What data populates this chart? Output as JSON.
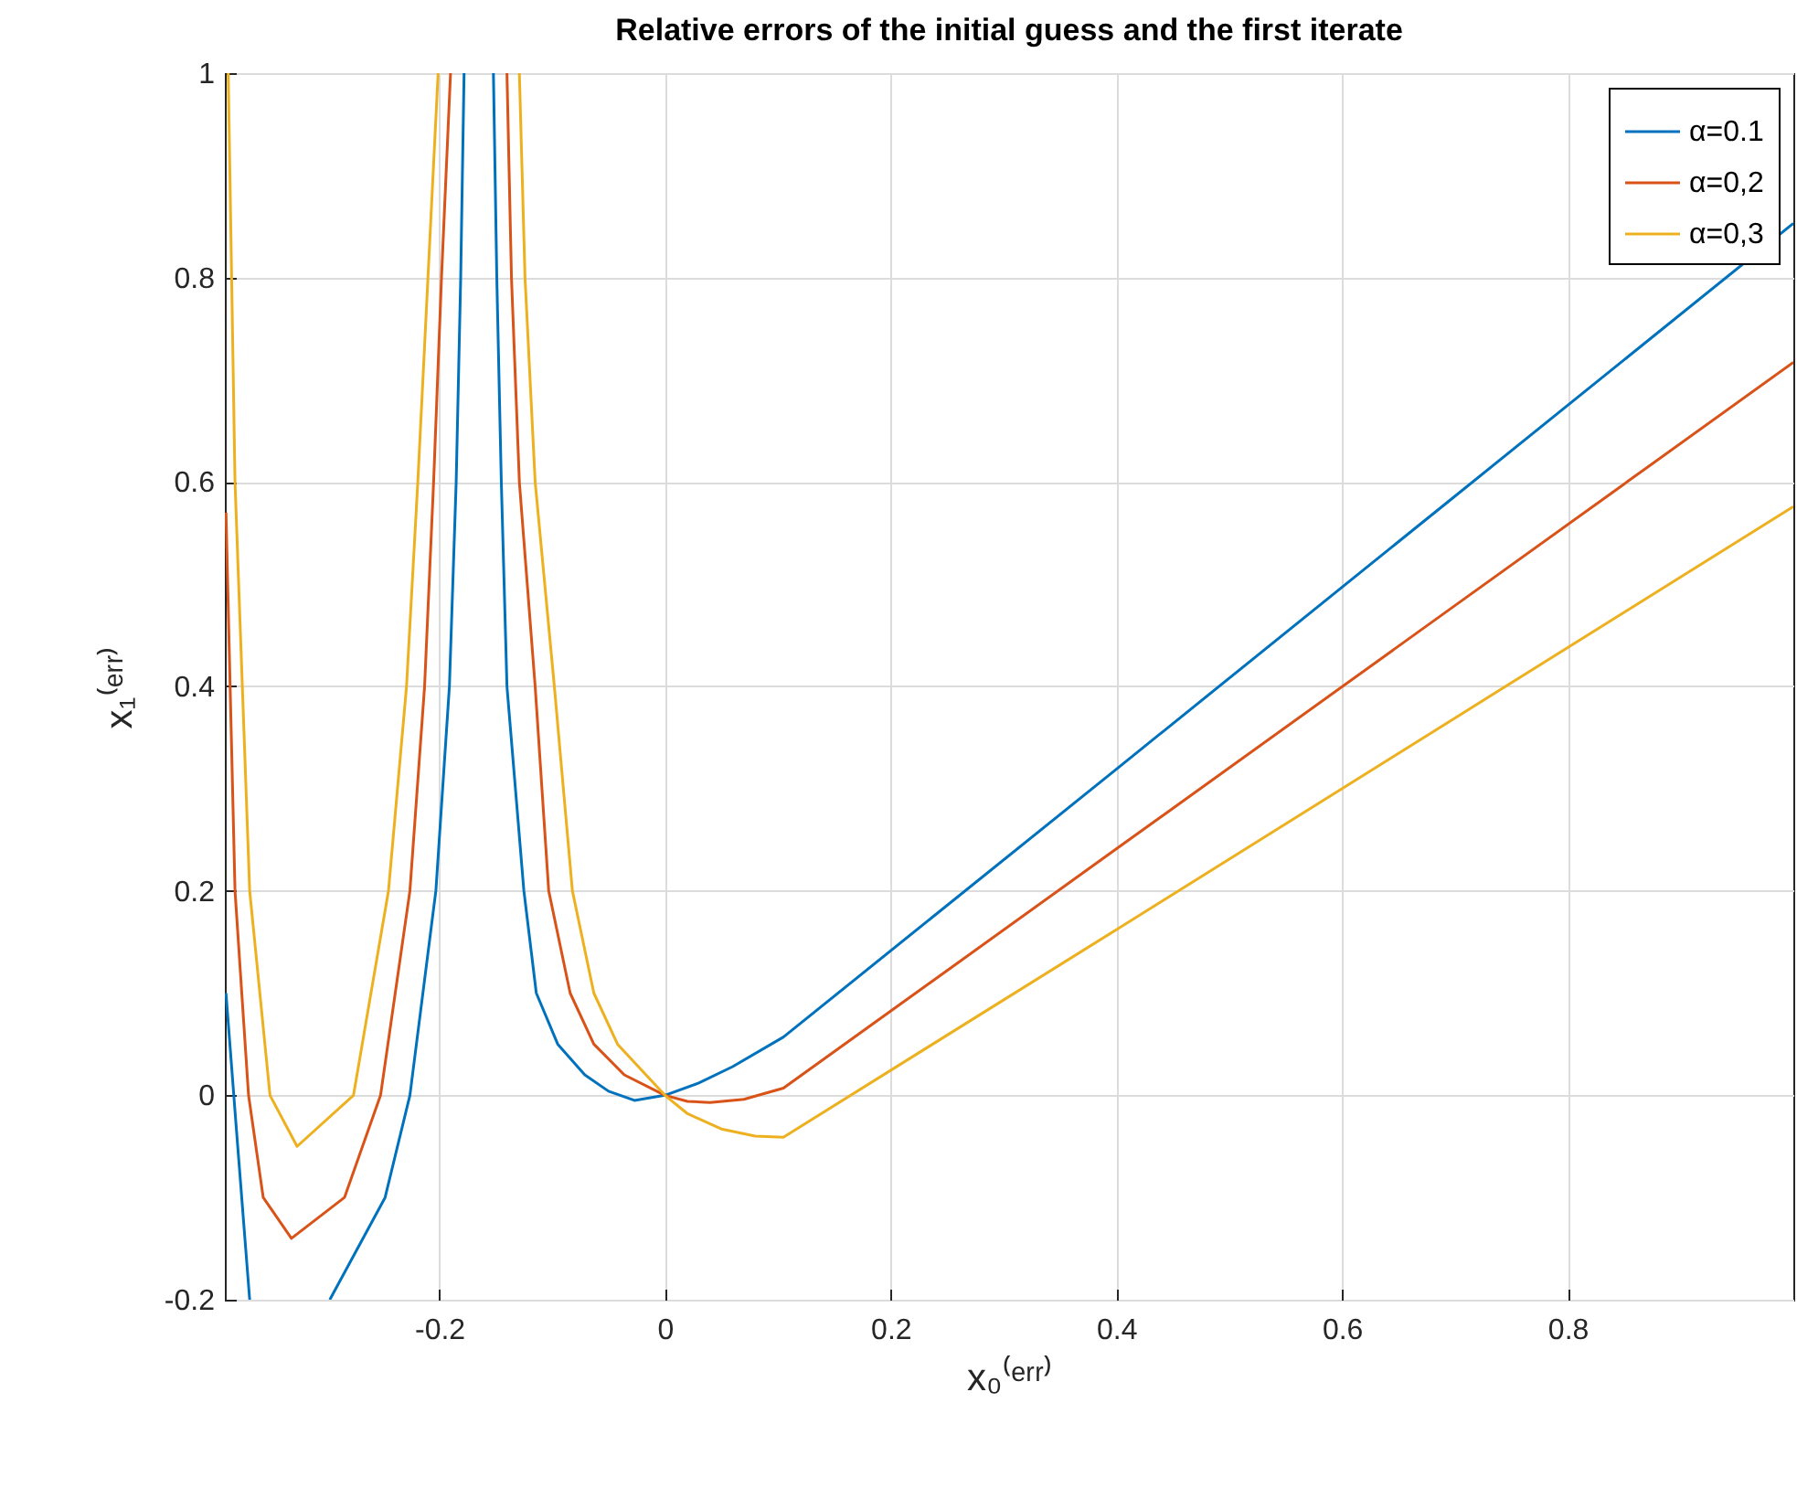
{
  "chart_data": {
    "type": "line",
    "title": "Relative errors of the initial guess and the first iterate",
    "xlabel": "x₀⁽ᵉʳʳ⁾",
    "ylabel": "x₁⁽ᵉʳʳ⁾",
    "xlim": [
      -0.39,
      1
    ],
    "ylim": [
      -0.2,
      1
    ],
    "xticks": [
      -0.2,
      0,
      0.2,
      0.4,
      0.6,
      0.8
    ],
    "yticks": [
      -0.2,
      0,
      0.2,
      0.4,
      0.6,
      0.8,
      1
    ],
    "grid": true,
    "legend": "top right",
    "line_style": "solid",
    "marker": "none",
    "series": [
      {
        "name": "α=0.1",
        "color": "#0072bd",
        "x": [
          -0.389,
          -0.38,
          -0.368,
          null,
          -0.297,
          -0.248,
          -0.226,
          -0.203,
          -0.191,
          -0.185,
          -0.181,
          -0.178,
          null,
          -0.152,
          -0.149,
          -0.145,
          -0.14,
          -0.125,
          -0.114,
          -0.095,
          -0.071,
          -0.05,
          -0.027,
          0,
          0.03,
          0.06,
          0.105,
          0.4,
          0.7,
          1
        ],
        "values": [
          0.1,
          -0.03,
          -0.2,
          null,
          -0.2,
          -0.1,
          0,
          0.2,
          0.4,
          0.6,
          0.8,
          1,
          null,
          1,
          0.8,
          0.6,
          0.4,
          0.2,
          0.1,
          0.05,
          0.02,
          0.004,
          -0.005,
          0,
          0.012,
          0.028,
          0.057,
          0.319,
          0.586,
          0.853
        ]
      },
      {
        "name": "α=0,2",
        "color": "#d95319",
        "x": [
          -0.389,
          -0.381,
          -0.369,
          -0.356,
          -0.331,
          -0.284,
          -0.252,
          -0.226,
          -0.213,
          -0.205,
          -0.198,
          -0.19,
          null,
          -0.14,
          -0.136,
          -0.129,
          -0.115,
          -0.103,
          -0.084,
          -0.063,
          -0.036,
          0,
          0.02,
          0.04,
          0.07,
          0.105,
          0.4,
          0.7,
          1
        ],
        "values": [
          0.57,
          0.2,
          0,
          -0.1,
          -0.14,
          -0.1,
          0,
          0.2,
          0.4,
          0.6,
          0.8,
          1,
          null,
          1,
          0.8,
          0.6,
          0.4,
          0.2,
          0.1,
          0.05,
          0.02,
          0,
          -0.006,
          -0.007,
          -0.004,
          0.007,
          0.241,
          0.479,
          0.717
        ]
      },
      {
        "name": "α=0,3",
        "color": "#edb120",
        "x": [
          -0.387,
          -0.381,
          -0.368,
          -0.35,
          -0.326,
          -0.276,
          -0.245,
          -0.229,
          -0.219,
          -0.21,
          -0.201,
          null,
          -0.129,
          -0.124,
          -0.115,
          -0.098,
          -0.082,
          -0.063,
          -0.042,
          0,
          0.02,
          0.05,
          0.08,
          0.105,
          0.4,
          0.7,
          1
        ],
        "values": [
          1,
          0.6,
          0.2,
          0,
          -0.05,
          0,
          0.2,
          0.4,
          0.6,
          0.8,
          1,
          null,
          1,
          0.8,
          0.6,
          0.4,
          0.2,
          0.1,
          0.05,
          0,
          -0.018,
          -0.033,
          -0.04,
          -0.041,
          0.162,
          0.369,
          0.576
        ]
      }
    ]
  }
}
